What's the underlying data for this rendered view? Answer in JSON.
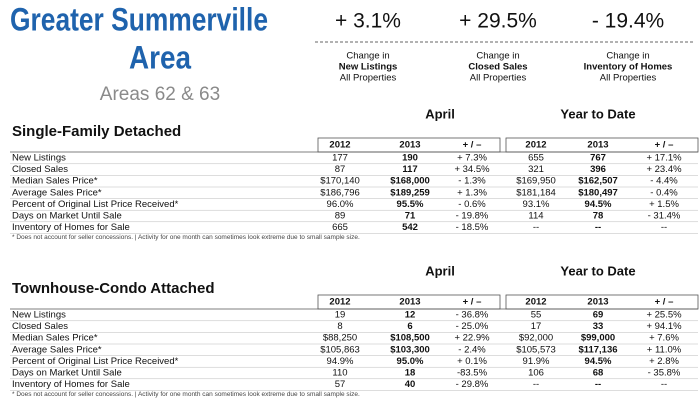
{
  "header": {
    "title_lines": [
      "Greater Summerville",
      "Area"
    ],
    "subtitle": "Areas 62 & 63"
  },
  "kpis": [
    {
      "value": "+ 3.1%",
      "lines": [
        "Change in",
        "New Listings",
        "All Properties"
      ]
    },
    {
      "value": "+ 29.5%",
      "lines": [
        "Change in",
        "Closed Sales",
        "All Properties"
      ]
    },
    {
      "value": "- 19.4%",
      "lines": [
        "Change in",
        "Inventory of Homes",
        "All Properties"
      ]
    }
  ],
  "sections": [
    {
      "title": "Single-Family Detached",
      "periods": [
        "April",
        "Year to Date"
      ],
      "columns": [
        "2012",
        "2013",
        "+ / –",
        "2012",
        "2013",
        "+ / –"
      ],
      "rows": [
        [
          "New Listings",
          "177",
          "190",
          "+ 7.3%",
          "655",
          "767",
          "+ 17.1%"
        ],
        [
          "Closed Sales",
          "87",
          "117",
          "+ 34.5%",
          "321",
          "396",
          "+ 23.4%"
        ],
        [
          "Median Sales Price*",
          "$170,140",
          "$168,000",
          "- 1.3%",
          "$169,950",
          "$162,507",
          "- 4.4%"
        ],
        [
          "Average Sales Price*",
          "$186,796",
          "$189,259",
          "+ 1.3%",
          "$181,184",
          "$180,497",
          "- 0.4%"
        ],
        [
          "Percent of Original List Price Received*",
          "96.0%",
          "95.5%",
          "- 0.6%",
          "93.1%",
          "94.5%",
          "+ 1.5%"
        ],
        [
          "Days on Market Until Sale",
          "89",
          "71",
          "- 19.8%",
          "114",
          "78",
          "- 31.4%"
        ],
        [
          "Inventory of Homes for Sale",
          "665",
          "542",
          "- 18.5%",
          "--",
          "--",
          "--"
        ]
      ],
      "footnote": "* Does not account for seller concessions.  |  Activity for one month can sometimes look extreme due to small sample size."
    },
    {
      "title": "Townhouse-Condo Attached",
      "periods": [
        "April",
        "Year to Date"
      ],
      "columns": [
        "2012",
        "2013",
        "+ / –",
        "2012",
        "2013",
        "+ / –"
      ],
      "rows": [
        [
          "New Listings",
          "19",
          "12",
          "- 36.8%",
          "55",
          "69",
          "+ 25.5%"
        ],
        [
          "Closed Sales",
          "8",
          "6",
          "- 25.0%",
          "17",
          "33",
          "+ 94.1%"
        ],
        [
          "Median Sales Price*",
          "$88,250",
          "$108,500",
          "+ 22.9%",
          "$92,000",
          "$99,000",
          "+ 7.6%"
        ],
        [
          "Average Sales Price*",
          "$105,863",
          "$103,300",
          "- 2.4%",
          "$105,573",
          "$117,136",
          "+ 11.0%"
        ],
        [
          "Percent of Original List Price Received*",
          "94.9%",
          "95.0%",
          "+ 0.1%",
          "91.9%",
          "94.5%",
          "+ 2.8%"
        ],
        [
          "Days on Market Until Sale",
          "110",
          "18",
          "-83.5%",
          "106",
          "68",
          "- 35.8%"
        ],
        [
          "Inventory of Homes for Sale",
          "57",
          "40",
          "- 29.8%",
          "--",
          "--",
          "--"
        ]
      ],
      "footnote": "* Does not account for seller concessions.  |  Activity for one month can sometimes look extreme due to small sample size."
    }
  ]
}
